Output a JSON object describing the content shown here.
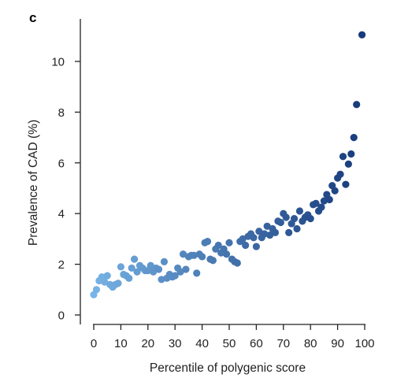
{
  "chart_data": {
    "type": "scatter",
    "panel_label": "c",
    "xlabel": "Percentile of polygenic score",
    "ylabel": "Prevalence of CAD (%)",
    "xlim": [
      0,
      100
    ],
    "ylim": [
      0,
      11
    ],
    "xticks": [
      0,
      10,
      20,
      30,
      40,
      50,
      60,
      70,
      80,
      90,
      100
    ],
    "yticks": [
      0,
      2,
      4,
      6,
      8,
      10
    ],
    "grid": false,
    "legend": "none",
    "color_gradient": [
      "#78b4e6",
      "#163a7a"
    ],
    "points": [
      {
        "x": 0,
        "y": 0.8
      },
      {
        "x": 1,
        "y": 1.0
      },
      {
        "x": 2,
        "y": 1.35
      },
      {
        "x": 3,
        "y": 1.5
      },
      {
        "x": 4,
        "y": 1.3
      },
      {
        "x": 5,
        "y": 1.55
      },
      {
        "x": 6,
        "y": 1.2
      },
      {
        "x": 7,
        "y": 1.1
      },
      {
        "x": 8,
        "y": 1.2
      },
      {
        "x": 9,
        "y": 1.25
      },
      {
        "x": 10,
        "y": 1.9
      },
      {
        "x": 11,
        "y": 1.6
      },
      {
        "x": 12,
        "y": 1.55
      },
      {
        "x": 13,
        "y": 1.45
      },
      {
        "x": 14,
        "y": 1.85
      },
      {
        "x": 15,
        "y": 2.2
      },
      {
        "x": 16,
        "y": 1.7
      },
      {
        "x": 17,
        "y": 1.95
      },
      {
        "x": 18,
        "y": 1.85
      },
      {
        "x": 19,
        "y": 1.75
      },
      {
        "x": 20,
        "y": 1.75
      },
      {
        "x": 21,
        "y": 1.95
      },
      {
        "x": 22,
        "y": 1.7
      },
      {
        "x": 23,
        "y": 1.85
      },
      {
        "x": 24,
        "y": 1.8
      },
      {
        "x": 25,
        "y": 1.4
      },
      {
        "x": 26,
        "y": 2.1
      },
      {
        "x": 27,
        "y": 1.45
      },
      {
        "x": 28,
        "y": 1.6
      },
      {
        "x": 29,
        "y": 1.5
      },
      {
        "x": 30,
        "y": 1.55
      },
      {
        "x": 31,
        "y": 1.85
      },
      {
        "x": 32,
        "y": 1.7
      },
      {
        "x": 33,
        "y": 2.4
      },
      {
        "x": 34,
        "y": 1.8
      },
      {
        "x": 35,
        "y": 2.3
      },
      {
        "x": 36,
        "y": 2.35
      },
      {
        "x": 37,
        "y": 2.35
      },
      {
        "x": 38,
        "y": 1.65
      },
      {
        "x": 39,
        "y": 2.4
      },
      {
        "x": 40,
        "y": 2.3
      },
      {
        "x": 41,
        "y": 2.85
      },
      {
        "x": 42,
        "y": 2.9
      },
      {
        "x": 43,
        "y": 2.2
      },
      {
        "x": 44,
        "y": 2.15
      },
      {
        "x": 45,
        "y": 2.6
      },
      {
        "x": 46,
        "y": 2.75
      },
      {
        "x": 47,
        "y": 2.45
      },
      {
        "x": 48,
        "y": 2.6
      },
      {
        "x": 49,
        "y": 2.4
      },
      {
        "x": 50,
        "y": 2.85
      },
      {
        "x": 51,
        "y": 2.2
      },
      {
        "x": 52,
        "y": 2.1
      },
      {
        "x": 53,
        "y": 2.05
      },
      {
        "x": 54,
        "y": 2.9
      },
      {
        "x": 55,
        "y": 3.0
      },
      {
        "x": 56,
        "y": 2.75
      },
      {
        "x": 57,
        "y": 3.1
      },
      {
        "x": 58,
        "y": 3.2
      },
      {
        "x": 59,
        "y": 3.05
      },
      {
        "x": 60,
        "y": 2.7
      },
      {
        "x": 61,
        "y": 3.3
      },
      {
        "x": 62,
        "y": 3.05
      },
      {
        "x": 63,
        "y": 3.2
      },
      {
        "x": 64,
        "y": 3.5
      },
      {
        "x": 65,
        "y": 3.15
      },
      {
        "x": 66,
        "y": 3.4
      },
      {
        "x": 67,
        "y": 3.25
      },
      {
        "x": 68,
        "y": 3.7
      },
      {
        "x": 69,
        "y": 3.65
      },
      {
        "x": 70,
        "y": 4.0
      },
      {
        "x": 71,
        "y": 3.85
      },
      {
        "x": 72,
        "y": 3.25
      },
      {
        "x": 73,
        "y": 3.6
      },
      {
        "x": 74,
        "y": 3.8
      },
      {
        "x": 75,
        "y": 3.4
      },
      {
        "x": 76,
        "y": 4.1
      },
      {
        "x": 77,
        "y": 3.7
      },
      {
        "x": 78,
        "y": 3.85
      },
      {
        "x": 79,
        "y": 3.95
      },
      {
        "x": 80,
        "y": 3.8
      },
      {
        "x": 81,
        "y": 4.35
      },
      {
        "x": 82,
        "y": 4.4
      },
      {
        "x": 83,
        "y": 4.1
      },
      {
        "x": 84,
        "y": 4.25
      },
      {
        "x": 85,
        "y": 4.5
      },
      {
        "x": 86,
        "y": 4.75
      },
      {
        "x": 87,
        "y": 4.55
      },
      {
        "x": 88,
        "y": 5.1
      },
      {
        "x": 89,
        "y": 4.9
      },
      {
        "x": 90,
        "y": 5.4
      },
      {
        "x": 91,
        "y": 5.55
      },
      {
        "x": 92,
        "y": 6.25
      },
      {
        "x": 93,
        "y": 5.15
      },
      {
        "x": 94,
        "y": 5.95
      },
      {
        "x": 95,
        "y": 6.35
      },
      {
        "x": 96,
        "y": 7.0
      },
      {
        "x": 97,
        "y": 8.3
      },
      {
        "x": 99,
        "y": 11.05
      }
    ]
  }
}
